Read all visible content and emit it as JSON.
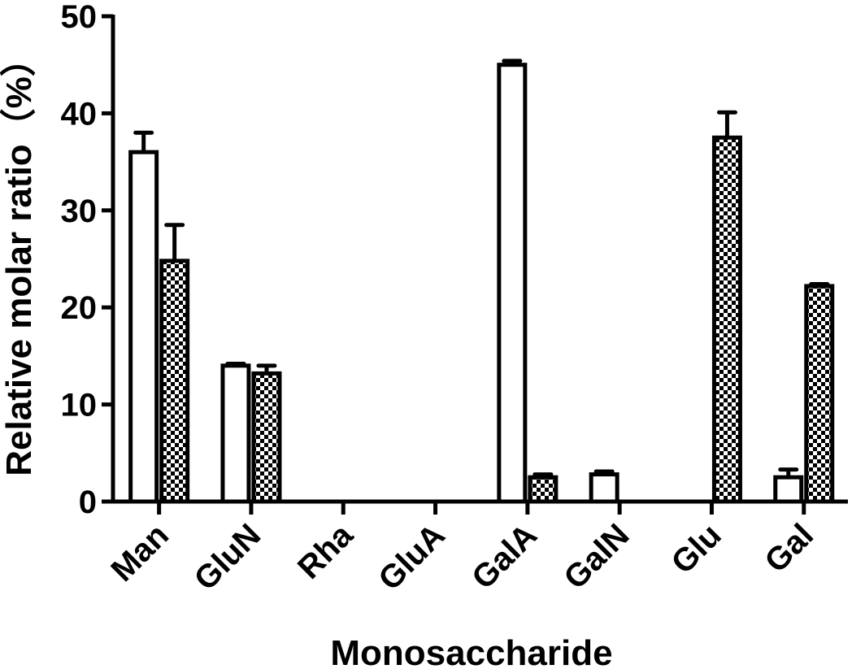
{
  "chart_data": {
    "type": "bar",
    "title": "",
    "xlabel": "Monosaccharide",
    "ylabel": "Relative molar ratio（%）",
    "ylim": [
      0,
      50
    ],
    "yticks": [
      0,
      10,
      20,
      30,
      40,
      50
    ],
    "grid": false,
    "legend": "none",
    "categories": [
      "Man",
      "GluN",
      "Rha",
      "GluA",
      "GalA",
      "GalN",
      "Glu",
      "Gal"
    ],
    "series": [
      {
        "pattern": "open",
        "color": "#ffffff",
        "values": [
          36.0,
          14.0,
          0,
          0,
          45.0,
          2.8,
          0,
          2.5
        ],
        "errors": [
          2.0,
          0.2,
          0,
          0,
          0.4,
          0.3,
          0,
          0.8
        ]
      },
      {
        "pattern": "checkered",
        "color": "#000000",
        "values": [
          24.8,
          13.2,
          0,
          0,
          2.5,
          0,
          37.5,
          22.2
        ],
        "errors": [
          3.7,
          0.8,
          0,
          0,
          0.3,
          0,
          2.6,
          0.2
        ]
      }
    ]
  }
}
